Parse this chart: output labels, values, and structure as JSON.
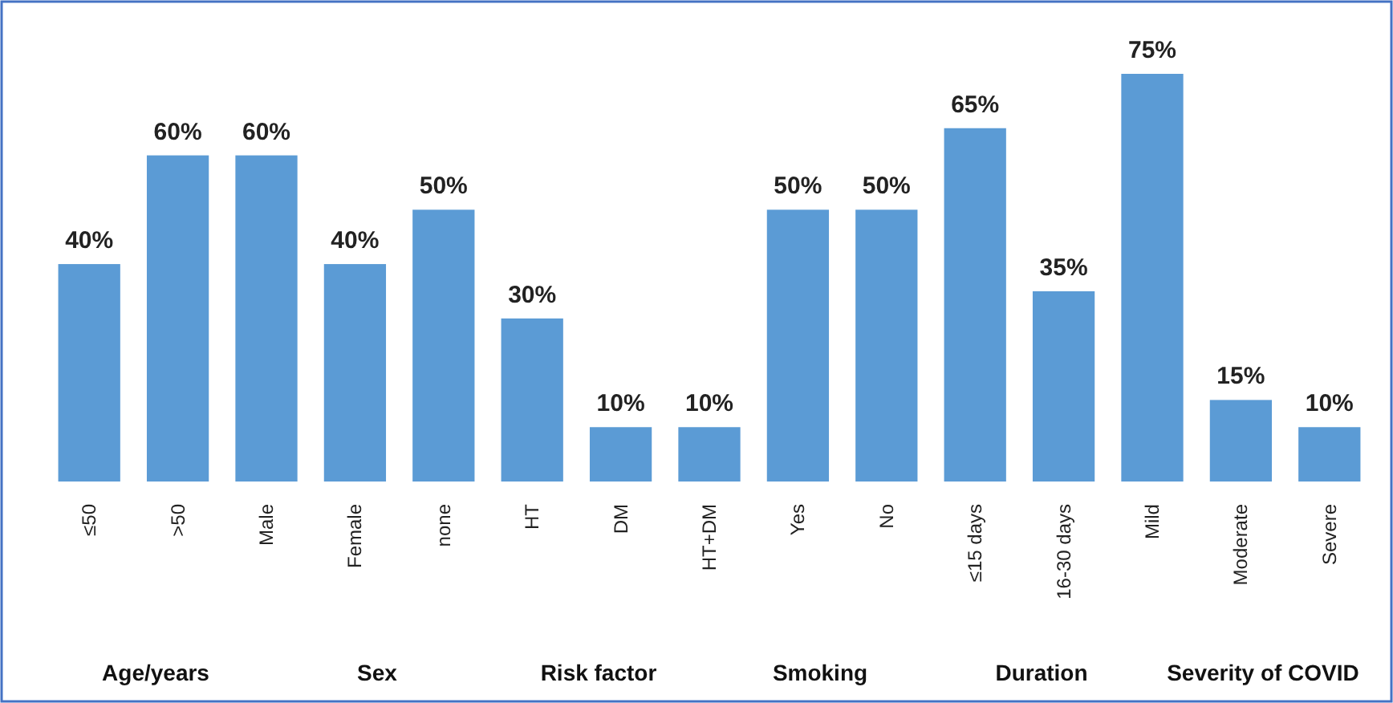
{
  "chart_data": {
    "type": "bar",
    "categories": [
      "≤50",
      ">50",
      "Male",
      "Female",
      "none",
      "HT",
      "DM",
      "HT+DM",
      "Yes",
      "No",
      "≤15 days",
      "16-30 days",
      "Mild",
      "Moderate",
      "Severe"
    ],
    "values": [
      40,
      60,
      60,
      40,
      50,
      30,
      10,
      10,
      50,
      50,
      65,
      35,
      75,
      15,
      10
    ],
    "value_labels": [
      "40%",
      "60%",
      "60%",
      "40%",
      "50%",
      "30%",
      "10%",
      "10%",
      "50%",
      "50%",
      "65%",
      "35%",
      "75%",
      "15%",
      "10%"
    ],
    "color": "#5b9bd5",
    "grid": false,
    "annotations": [
      "Age/years",
      "Sex",
      "Risk factor",
      "Smoking",
      "Duration",
      "Severity of COVID"
    ]
  }
}
